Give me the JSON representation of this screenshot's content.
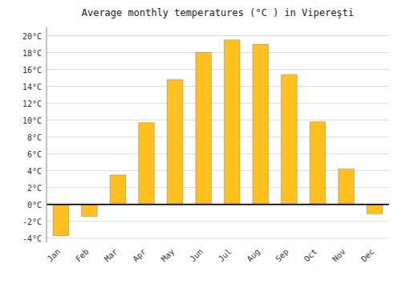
{
  "chart_data": {
    "type": "bar",
    "title": "Average monthly temperatures (°C ) in Vipereşti",
    "categories": [
      "Jan",
      "Feb",
      "Mar",
      "Apr",
      "May",
      "Jun",
      "Jul",
      "Aug",
      "Sep",
      "Oct",
      "Nov",
      "Dec"
    ],
    "values": [
      -3.7,
      -1.4,
      3.5,
      9.7,
      14.8,
      18.0,
      19.5,
      19.0,
      15.4,
      9.8,
      4.2,
      -1.1
    ],
    "color": "#FFC020",
    "ylim": [
      -4.5,
      21.0
    ],
    "yticks": [
      {
        "value": -4,
        "label": "-4°C"
      },
      {
        "value": -2,
        "label": "-2°C"
      },
      {
        "value": 0,
        "label": "0°C"
      },
      {
        "value": 2,
        "label": "2°C"
      },
      {
        "value": 4,
        "label": "4°C"
      },
      {
        "value": 6,
        "label": "6°C"
      },
      {
        "value": 8,
        "label": "8°C"
      },
      {
        "value": 10,
        "label": "10°C"
      },
      {
        "value": 12,
        "label": "12°C"
      },
      {
        "value": 14,
        "label": "14°C"
      },
      {
        "value": 16,
        "label": "16°C"
      },
      {
        "value": 18,
        "label": "18°C"
      },
      {
        "value": 20,
        "label": "20°C"
      }
    ],
    "grid": true
  }
}
